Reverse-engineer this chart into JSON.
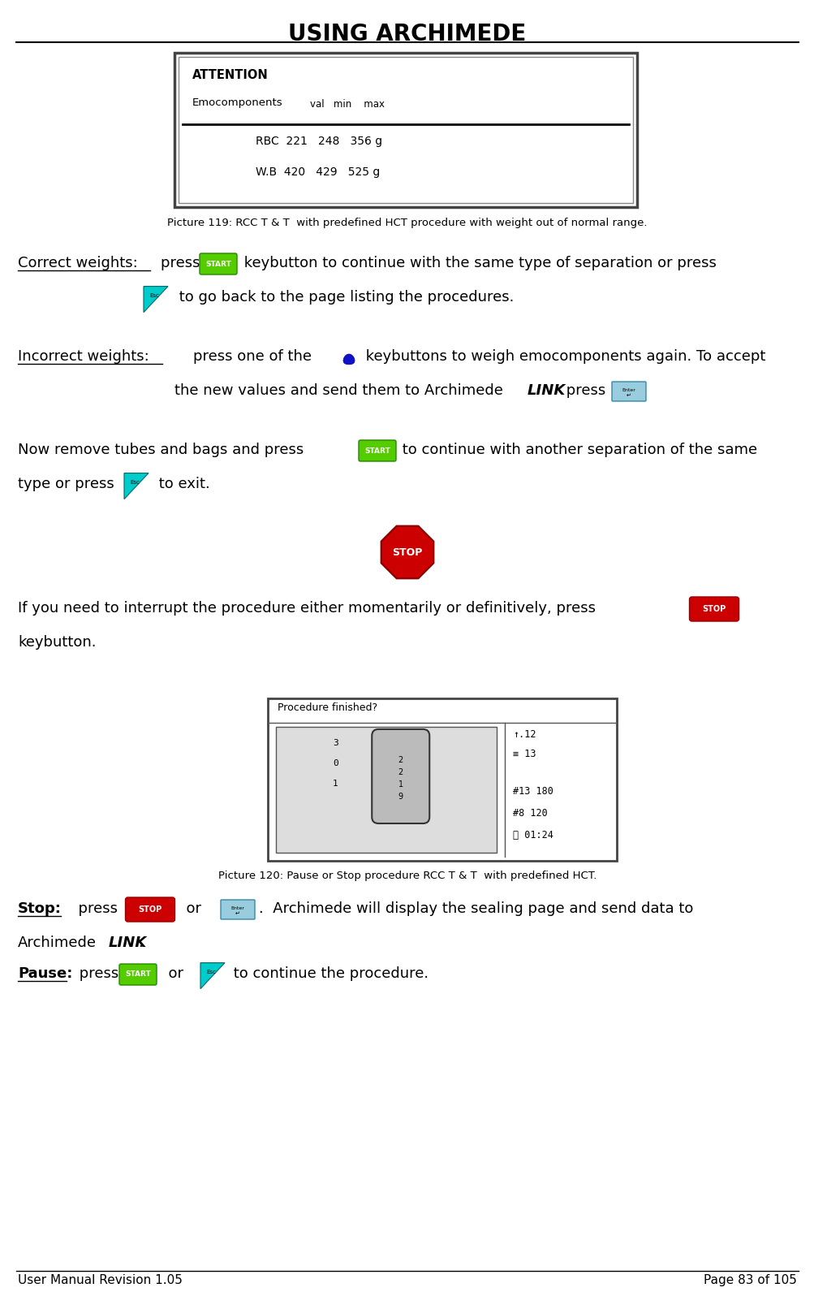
{
  "title": "USING ARCHIMEDE",
  "footer_left": "User Manual Revision 1.05",
  "footer_right": "Page 83 of 105",
  "bg_color": "#ffffff",
  "text_color": "#000000",
  "pic119_caption": "Picture 119: RCC T & T  with predefined HCT procedure with weight out of normal range.",
  "pic120_caption": "Picture 120: Pause or Stop procedure RCC T & T  with predefined HCT."
}
